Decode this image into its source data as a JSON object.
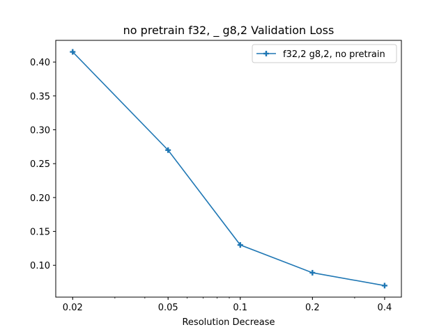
{
  "chart_data": {
    "type": "line",
    "title": "no pretrain f32, _ g8,2 Validation Loss",
    "xlabel": "Resolution Decrease",
    "ylabel": "",
    "x_scale": "log",
    "xlim": [
      0.017,
      0.47
    ],
    "ylim": [
      0.053,
      0.432
    ],
    "x_ticks": [
      0.02,
      0.05,
      0.1,
      0.2,
      0.4
    ],
    "x_tick_labels": [
      "0.02",
      "0.05",
      "0.1",
      "0.2",
      "0.4"
    ],
    "y_ticks": [
      0.1,
      0.15,
      0.2,
      0.25,
      0.3,
      0.35,
      0.4
    ],
    "y_tick_labels": [
      "0.10",
      "0.15",
      "0.20",
      "0.25",
      "0.30",
      "0.35",
      "0.40"
    ],
    "grid": false,
    "legend_position": "top-right",
    "series": [
      {
        "name": "f32,2 g8,2, no pretrain",
        "marker": "plus",
        "color": "#1f77b4",
        "x": [
          0.02,
          0.05,
          0.1,
          0.2,
          0.4
        ],
        "y": [
          0.415,
          0.27,
          0.13,
          0.089,
          0.07
        ]
      }
    ]
  }
}
